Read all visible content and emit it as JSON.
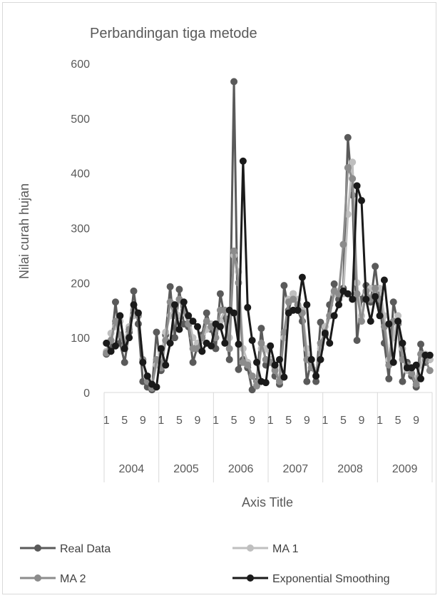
{
  "chart_data": {
    "type": "line",
    "title": "Perbandingan tiga metode",
    "xlabel": "Axis Title",
    "ylabel": "Nilai curah hujan",
    "ylim": [
      0,
      600
    ],
    "yticks": [
      "0",
      "100",
      "200",
      "300",
      "400",
      "500",
      "600"
    ],
    "x_sub_ticks": [
      "1",
      "5",
      "9"
    ],
    "years": [
      "2004",
      "2005",
      "2006",
      "2007",
      "2008",
      "2009"
    ],
    "months_per_year": 12,
    "grid": false,
    "legend_position": "bottom",
    "series": [
      {
        "name": "Real Data",
        "color": "#5a5a5a",
        "values": [
          70,
          80,
          165,
          90,
          55,
          110,
          185,
          125,
          20,
          10,
          5,
          110,
          40,
          105,
          193,
          100,
          188,
          125,
          120,
          55,
          85,
          105,
          145,
          115,
          80,
          180,
          135,
          60,
          567,
          42,
          60,
          45,
          5,
          20,
          117,
          50,
          60,
          30,
          15,
          195,
          150,
          180,
          150,
          130,
          20,
          60,
          20,
          128,
          105,
          160,
          198,
          170,
          190,
          465,
          360,
          95,
          170,
          195,
          165,
          230,
          160,
          90,
          25,
          165,
          125,
          20,
          55,
          30,
          10,
          88,
          55,
          60
        ]
      },
      {
        "name": "MA 1",
        "color": "#bfbfbf",
        "values": [
          75,
          108,
          120,
          130,
          95,
          120,
          140,
          145,
          60,
          25,
          15,
          50,
          70,
          110,
          140,
          150,
          140,
          145,
          140,
          100,
          90,
          95,
          115,
          125,
          115,
          130,
          150,
          100,
          250,
          220,
          80,
          55,
          30,
          15,
          80,
          80,
          60,
          45,
          25,
          100,
          170,
          180,
          170,
          150,
          80,
          50,
          40,
          80,
          120,
          140,
          180,
          185,
          180,
          325,
          420,
          200,
          140,
          180,
          190,
          180,
          190,
          140,
          60,
          100,
          140,
          80,
          40,
          45,
          25,
          50,
          70,
          60
        ]
      },
      {
        "name": "MA 2",
        "color": "#8c8c8c",
        "values": [
          72,
          95,
          130,
          105,
          85,
          115,
          150,
          140,
          60,
          20,
          8,
          60,
          45,
          95,
          165,
          140,
          170,
          150,
          125,
          80,
          80,
          100,
          130,
          120,
          100,
          150,
          150,
          80,
          258,
          200,
          55,
          50,
          30,
          12,
          90,
          60,
          55,
          40,
          20,
          110,
          165,
          170,
          160,
          145,
          60,
          45,
          30,
          90,
          110,
          140,
          185,
          180,
          270,
          410,
          390,
          180,
          130,
          185,
          170,
          190,
          170,
          120,
          50,
          130,
          130,
          60,
          50,
          35,
          15,
          70,
          60,
          40
        ]
      },
      {
        "name": "Exponential Smoothing",
        "color": "#1a1a1a",
        "values": [
          90,
          75,
          85,
          140,
          80,
          100,
          160,
          145,
          55,
          30,
          15,
          10,
          80,
          50,
          90,
          160,
          115,
          165,
          140,
          130,
          120,
          75,
          90,
          85,
          125,
          120,
          90,
          150,
          145,
          88,
          422,
          155,
          95,
          55,
          20,
          18,
          85,
          50,
          60,
          28,
          145,
          150,
          150,
          210,
          160,
          60,
          30,
          60,
          108,
          90,
          140,
          160,
          185,
          180,
          170,
          377,
          350,
          170,
          130,
          175,
          140,
          205,
          125,
          55,
          130,
          90,
          45,
          45,
          50,
          25,
          68,
          68
        ]
      }
    ]
  }
}
